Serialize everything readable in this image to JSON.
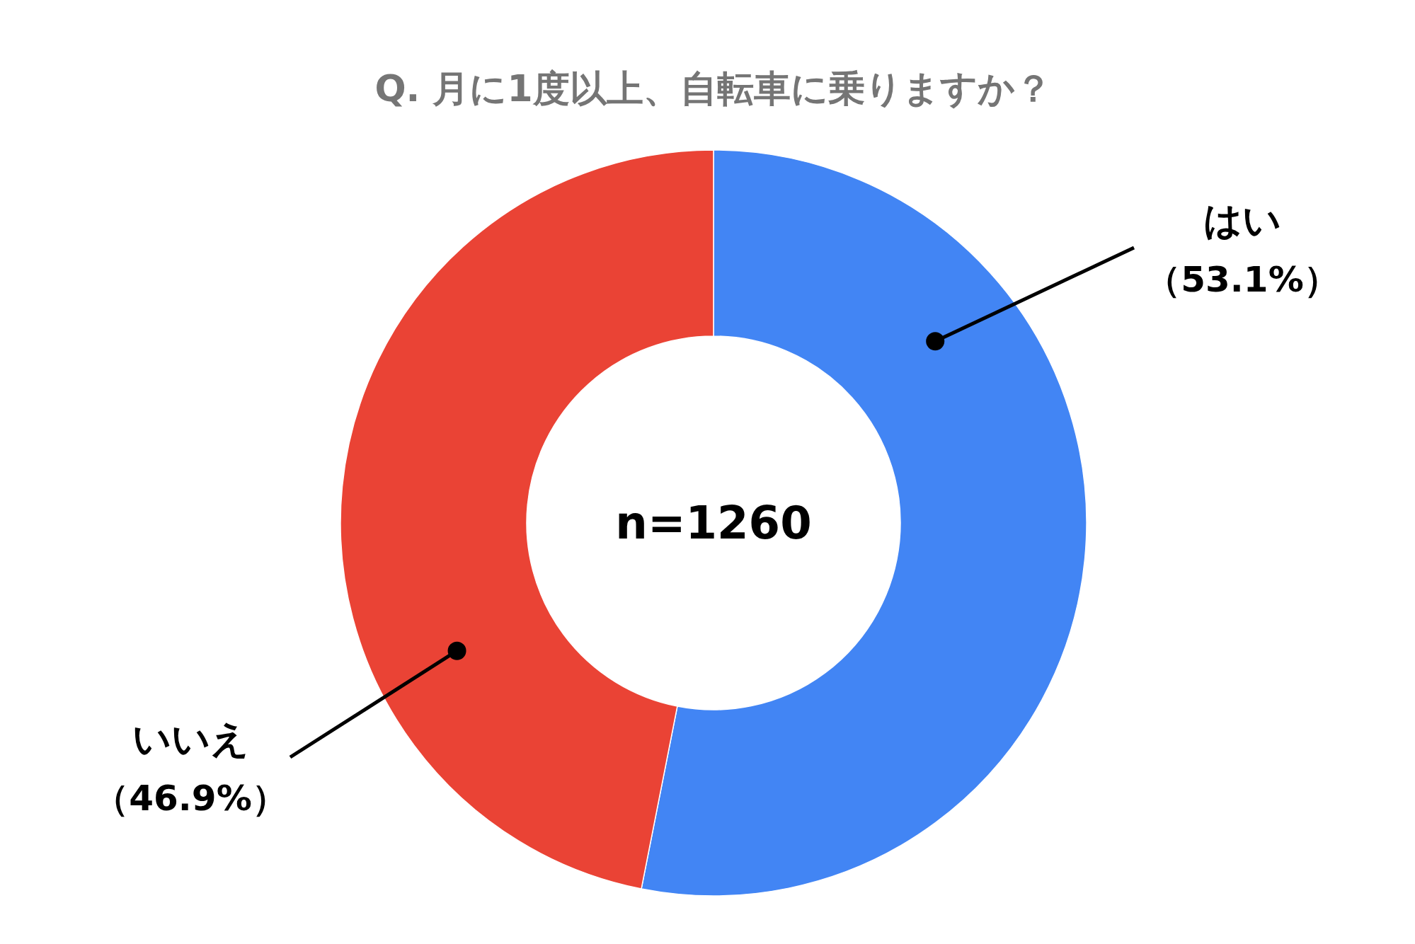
{
  "chart_data": {
    "type": "donut",
    "title": "Q. 月に1度以上、自転車に乗りますか？",
    "categories": [
      "はい",
      "いいえ"
    ],
    "values": [
      53.1,
      46.9
    ],
    "colors": [
      "#4285f4",
      "#ea4335"
    ],
    "value_labels": [
      "（53.1%）",
      "（46.9%）"
    ],
    "annotations": [
      "n=1260"
    ]
  }
}
